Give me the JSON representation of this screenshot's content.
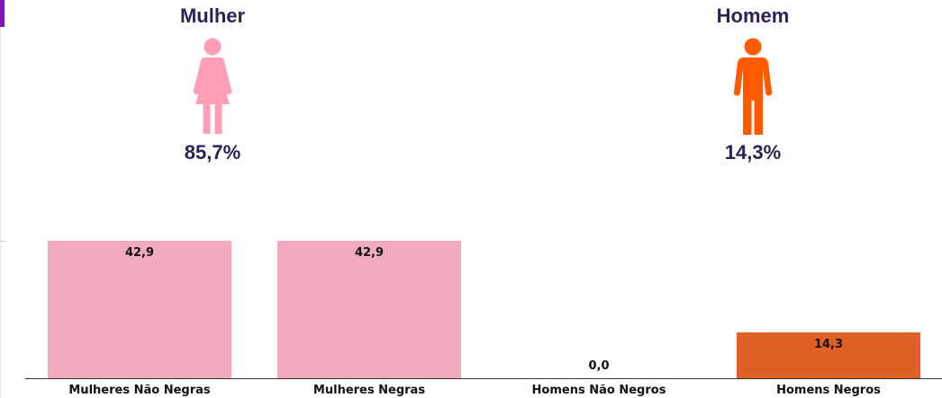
{
  "colors": {
    "female": "#f2abbc",
    "female_icon": "#ff9eb5",
    "male": "#e06024",
    "male_icon": "#ff5a00",
    "title_text": "#2e2155"
  },
  "gender_panels": [
    {
      "title": "Mulher",
      "percent": "85,7%",
      "icon": "female-figure-icon"
    },
    {
      "title": "Homem",
      "percent": "14,3%",
      "icon": "male-figure-icon"
    }
  ],
  "chart_data": {
    "type": "bar",
    "categories": [
      "Mulheres Não Negras",
      "Mulheres Negras",
      "Homens Não Negros",
      "Homens Negros"
    ],
    "values": [
      42.9,
      42.9,
      0.0,
      14.3
    ],
    "value_labels": [
      "42,9",
      "42,9",
      "0,0",
      "14,3"
    ],
    "bar_colors": [
      "#f2abbc",
      "#f2abbc",
      "#f2abbc",
      "#e06024"
    ],
    "ylim": [
      0,
      50
    ],
    "grid": false,
    "legend": "none"
  }
}
